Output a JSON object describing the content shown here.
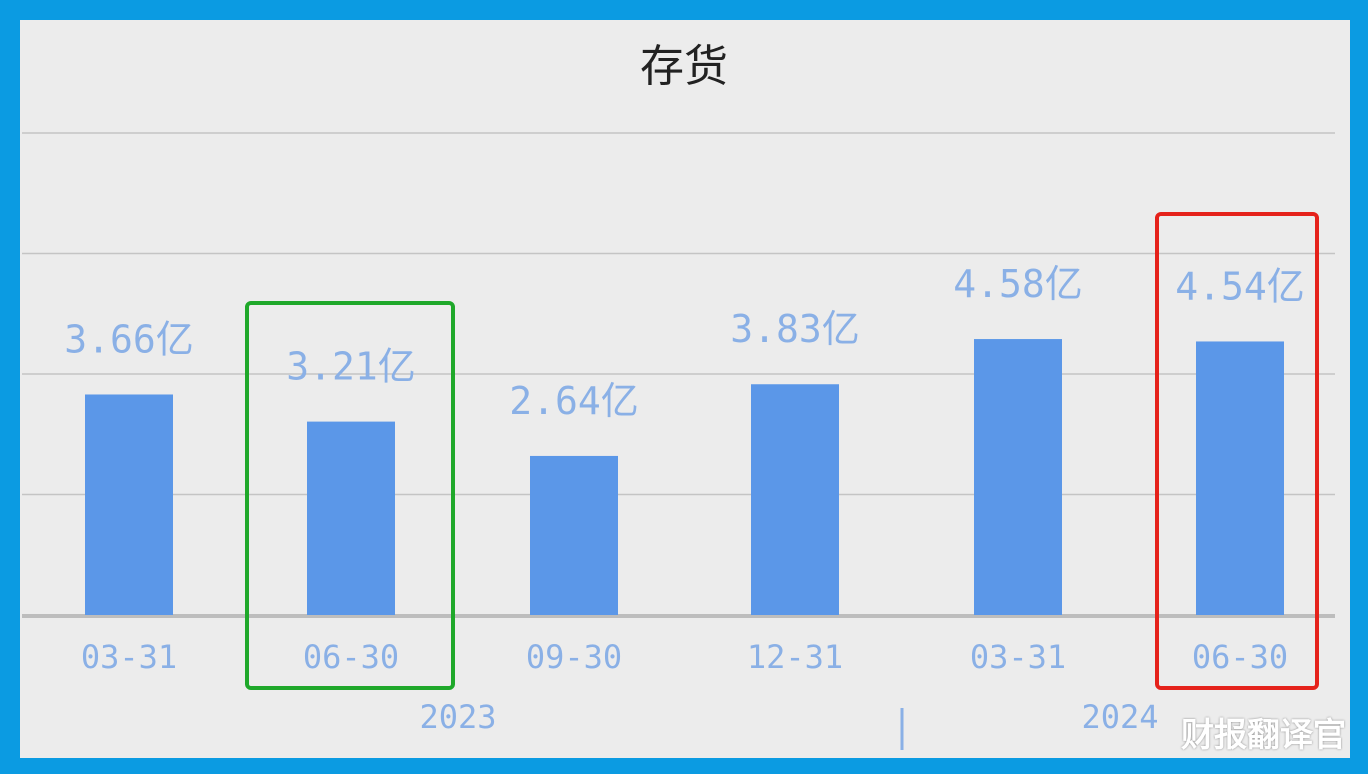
{
  "chart_data": {
    "type": "bar",
    "title": "存货",
    "categories": [
      "03-31",
      "06-30",
      "09-30",
      "12-31",
      "03-31",
      "06-30"
    ],
    "year_labels": [
      {
        "label": "2023",
        "span": [
          0,
          3
        ]
      },
      {
        "label": "2024",
        "span": [
          4,
          5
        ]
      }
    ],
    "values": [
      3.66,
      3.21,
      2.64,
      3.83,
      4.58,
      4.54
    ],
    "data_labels": [
      "3.66亿",
      "3.21亿",
      "2.64亿",
      "3.83亿",
      "4.58亿",
      "4.54亿"
    ],
    "unit": "亿",
    "ylim": [
      0,
      8
    ],
    "grid": true,
    "highlights": [
      {
        "index": 1,
        "color": "#1fa82a"
      },
      {
        "index": 5,
        "color": "#e5221b"
      }
    ],
    "colors": {
      "bar": "#5b97e8",
      "label": "#8ab0e6",
      "frame": "#0b9be2",
      "grid": "#c4c4c4"
    }
  },
  "watermark": "财报翻译官"
}
